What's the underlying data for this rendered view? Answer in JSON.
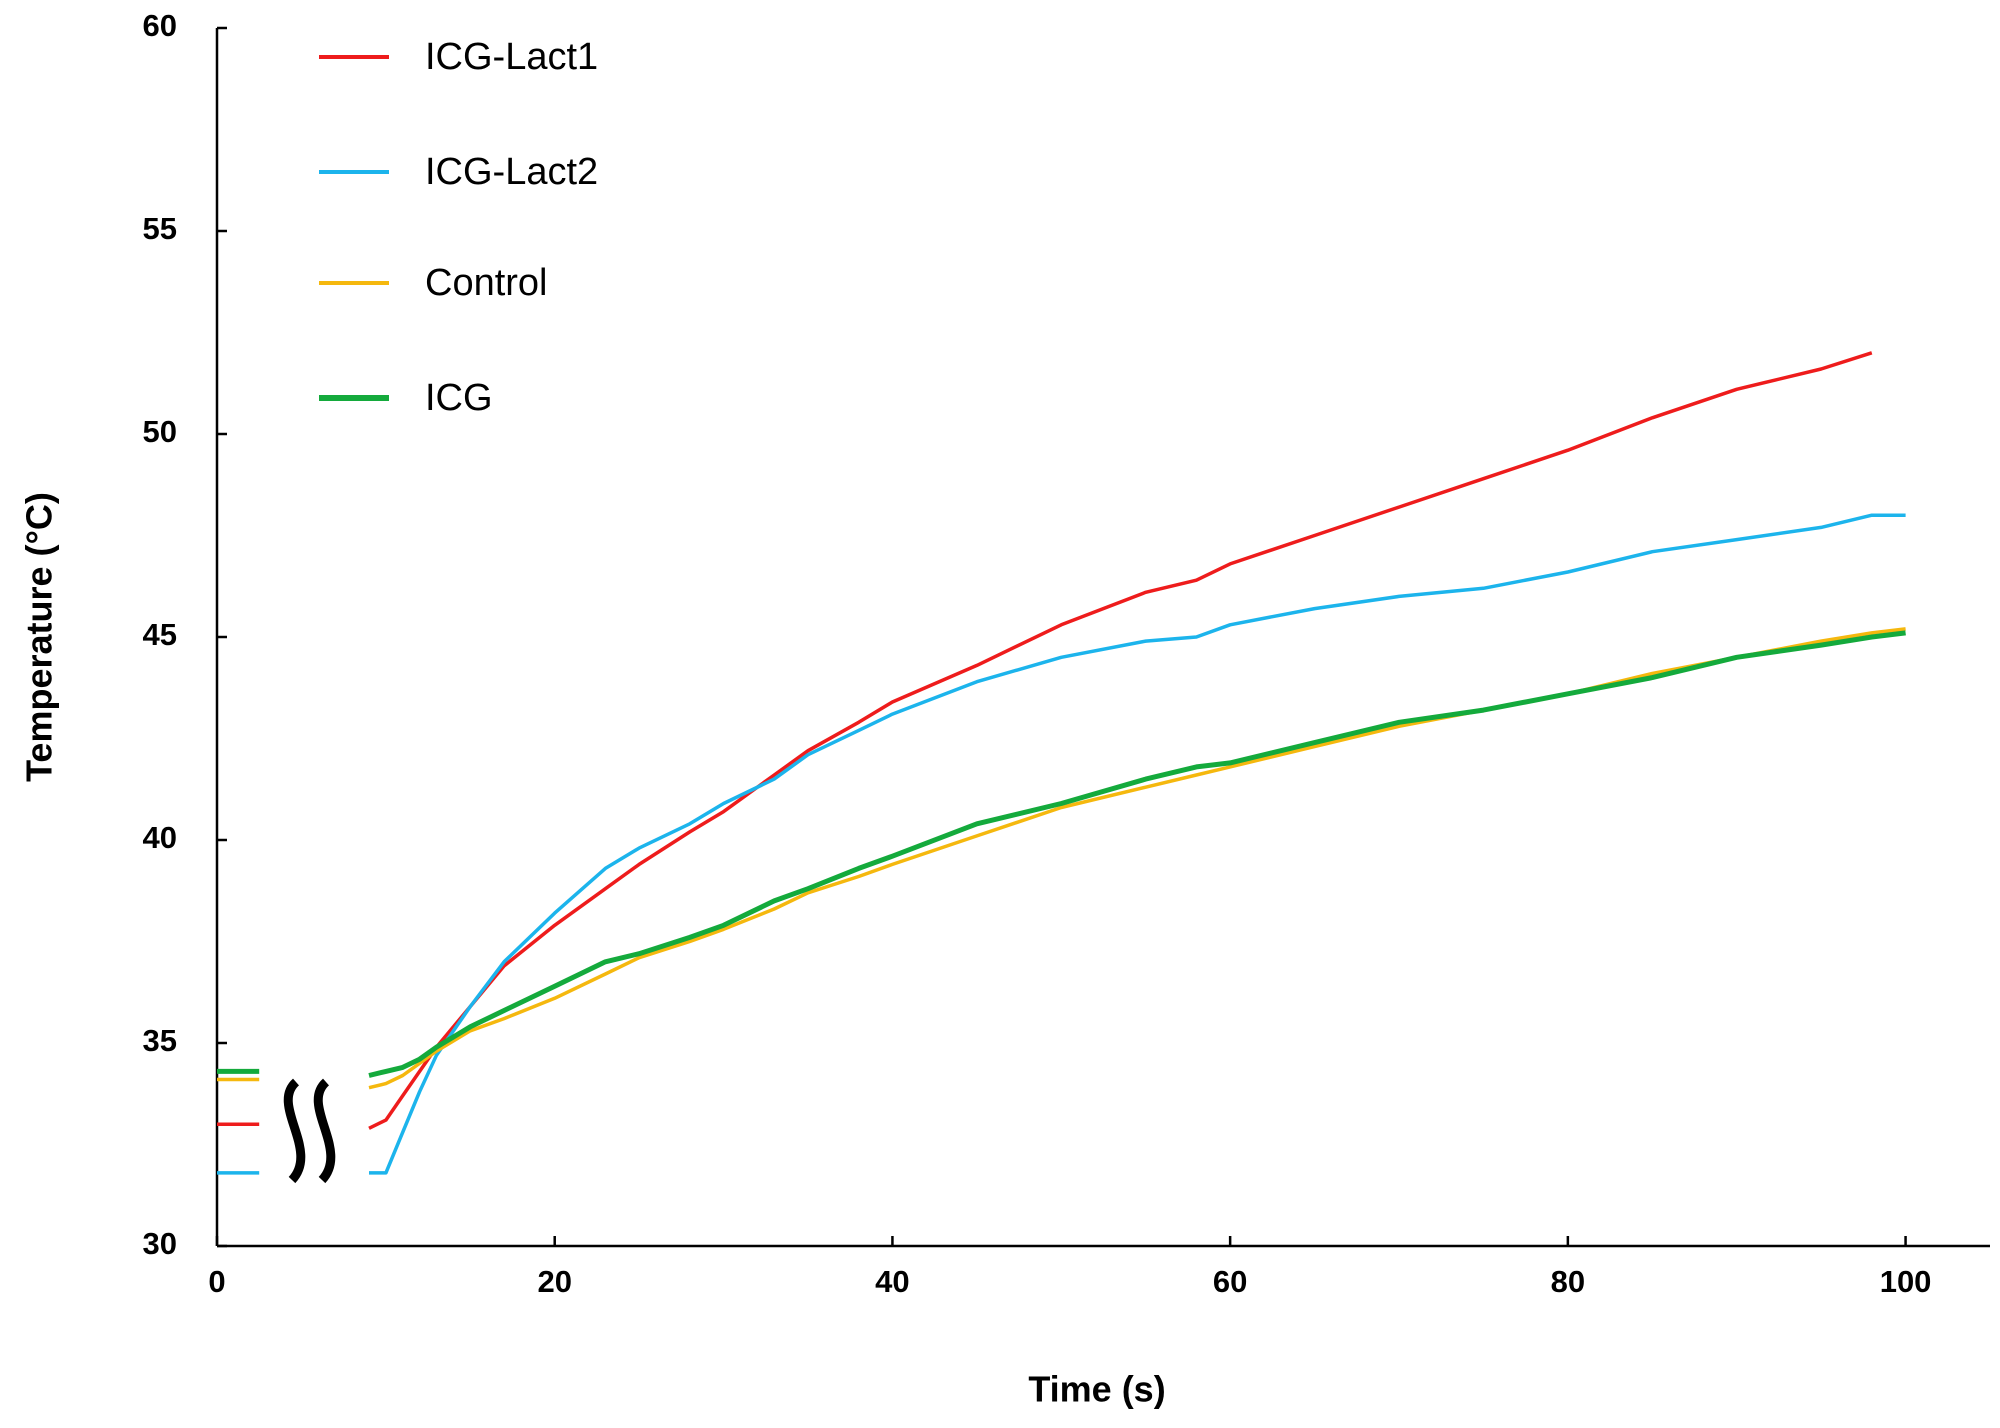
{
  "chart_data": {
    "type": "line",
    "x_label": "Time (s)",
    "y_label": "Temperature (°C)",
    "xlim": [
      0,
      105
    ],
    "ylim": [
      30,
      60
    ],
    "xticks": [
      0,
      20,
      40,
      60,
      80,
      100
    ],
    "yticks": [
      30,
      35,
      40,
      45,
      50,
      55,
      60
    ],
    "grid": false,
    "legend": "upper left",
    "x": [
      0,
      2.5,
      5,
      9,
      10,
      11,
      12,
      13,
      15,
      17,
      20,
      23,
      25,
      28,
      30,
      33,
      35,
      38,
      40,
      45,
      50,
      55,
      58,
      60,
      65,
      70,
      75,
      80,
      85,
      90,
      95,
      98,
      100
    ],
    "series": [
      {
        "name": "ICG-Lact1",
        "color": "#ee1c1c",
        "values": [
          33,
          33,
          null,
          32.9,
          33.1,
          33.7,
          34.3,
          34.9,
          35.9,
          36.9,
          37.9,
          38.8,
          39.4,
          40.2,
          40.7,
          41.6,
          42.2,
          42.9,
          43.4,
          44.3,
          45.3,
          46.1,
          46.4,
          46.8,
          47.5,
          48.2,
          48.9,
          49.6,
          50.4,
          51.1,
          51.6,
          52.0,
          null
        ]
      },
      {
        "name": "ICG-Lact2",
        "color": "#1cb4ec",
        "values": [
          31.8,
          31.8,
          null,
          31.8,
          31.8,
          32.8,
          33.8,
          34.7,
          35.9,
          37,
          38.2,
          39.3,
          39.8,
          40.4,
          40.9,
          41.5,
          42.1,
          42.7,
          43.1,
          43.9,
          44.5,
          44.9,
          45,
          45.3,
          45.7,
          46,
          46.2,
          46.6,
          47.1,
          47.4,
          47.7,
          48,
          48
        ]
      },
      {
        "name": "Control",
        "color": "#f5b80e",
        "values": [
          34.1,
          34.1,
          null,
          33.9,
          34,
          34.2,
          34.5,
          34.8,
          35.3,
          35.6,
          36.1,
          36.7,
          37.1,
          37.5,
          37.8,
          38.3,
          38.7,
          39.1,
          39.4,
          40.1,
          40.8,
          41.3,
          41.6,
          41.8,
          42.3,
          42.8,
          43.2,
          43.6,
          44.1,
          44.5,
          44.9,
          45.1,
          45.2
        ]
      },
      {
        "name": "ICG",
        "color": "#14aa3c",
        "values": [
          34.3,
          34.3,
          null,
          34.2,
          34.3,
          34.4,
          34.6,
          34.9,
          35.4,
          35.8,
          36.4,
          37,
          37.2,
          37.6,
          37.9,
          38.5,
          38.8,
          39.3,
          39.6,
          40.4,
          40.9,
          41.5,
          41.8,
          41.9,
          42.4,
          42.9,
          43.2,
          43.6,
          44,
          44.5,
          44.8,
          45,
          45.1
        ]
      }
    ]
  }
}
